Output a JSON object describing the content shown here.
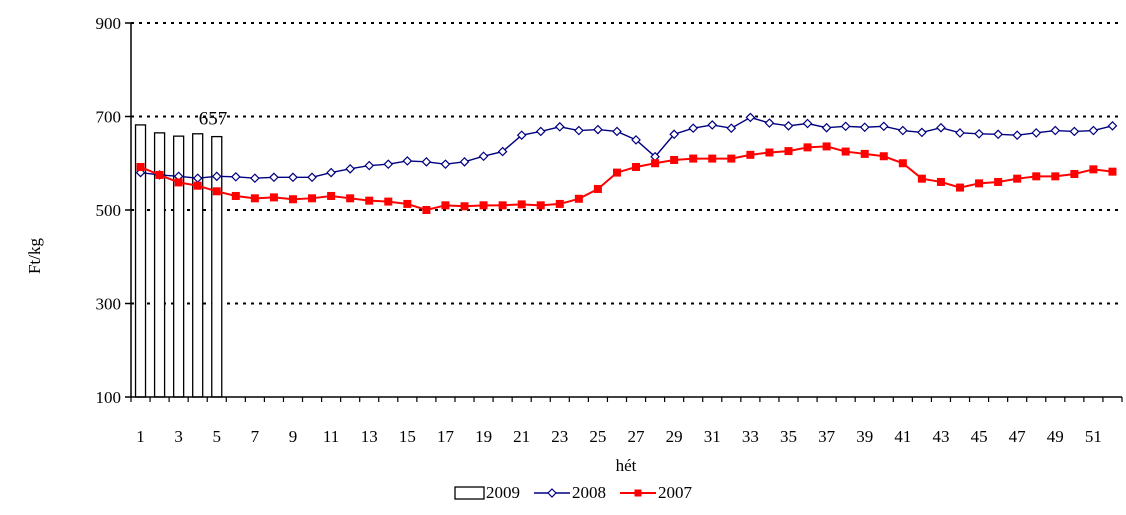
{
  "chart_data": {
    "type": "bar+line",
    "title": "",
    "xlabel": "hét",
    "ylabel": "Ft/kg",
    "ylim": [
      100,
      900
    ],
    "y_ticks": [
      100,
      300,
      500,
      700,
      900
    ],
    "x_ticks": [
      "1",
      "3",
      "5",
      "7",
      "9",
      "11",
      "13",
      "15",
      "17",
      "19",
      "21",
      "23",
      "25",
      "27",
      "29",
      "31",
      "33",
      "35",
      "37",
      "39",
      "41",
      "43",
      "45",
      "47",
      "49",
      "51"
    ],
    "grid": "horizontal dotted",
    "legend_position": "bottom",
    "series": [
      {
        "name": "2009",
        "kind": "bar",
        "color": "#ffffff",
        "x": [
          1,
          2,
          3,
          4,
          5
        ],
        "values": [
          682,
          665,
          658,
          663,
          657
        ],
        "annotation": {
          "x": 5,
          "label": "657"
        }
      },
      {
        "name": "2008",
        "kind": "line",
        "marker": "diamond-open",
        "color": "#000080",
        "x": [
          1,
          2,
          3,
          4,
          5,
          6,
          7,
          8,
          9,
          10,
          11,
          12,
          13,
          14,
          15,
          16,
          17,
          18,
          19,
          20,
          21,
          22,
          23,
          24,
          25,
          26,
          27,
          28,
          29,
          30,
          31,
          32,
          33,
          34,
          35,
          36,
          37,
          38,
          39,
          40,
          41,
          42,
          43,
          44,
          45,
          46,
          47,
          48,
          49,
          50,
          51,
          52
        ],
        "values": [
          580,
          575,
          572,
          568,
          572,
          571,
          568,
          570,
          570,
          570,
          580,
          588,
          595,
          598,
          605,
          603,
          598,
          603,
          615,
          625,
          660,
          668,
          678,
          670,
          672,
          668,
          650,
          614,
          662,
          675,
          682,
          675,
          698,
          686,
          680,
          685,
          676,
          679,
          677,
          679,
          670,
          666,
          676,
          665,
          663,
          662,
          660,
          665,
          670,
          668,
          670,
          680
        ]
      },
      {
        "name": "2007",
        "kind": "line",
        "marker": "square-filled",
        "color": "#ff0000",
        "x": [
          1,
          2,
          3,
          4,
          5,
          6,
          7,
          8,
          9,
          10,
          11,
          12,
          13,
          14,
          15,
          16,
          17,
          18,
          19,
          20,
          21,
          22,
          23,
          24,
          25,
          26,
          27,
          28,
          29,
          30,
          31,
          32,
          33,
          34,
          35,
          36,
          37,
          38,
          39,
          40,
          41,
          42,
          43,
          44,
          45,
          46,
          47,
          48,
          49,
          50,
          51,
          52
        ],
        "values": [
          592,
          575,
          559,
          552,
          540,
          530,
          525,
          527,
          523,
          525,
          530,
          525,
          520,
          518,
          513,
          500,
          510,
          508,
          510,
          510,
          512,
          510,
          513,
          524,
          545,
          580,
          592,
          600,
          607,
          610,
          610,
          610,
          618,
          623,
          626,
          634,
          636,
          625,
          620,
          615,
          600,
          567,
          560,
          548,
          557,
          560,
          567,
          572,
          572,
          577,
          587,
          582
        ]
      }
    ]
  }
}
